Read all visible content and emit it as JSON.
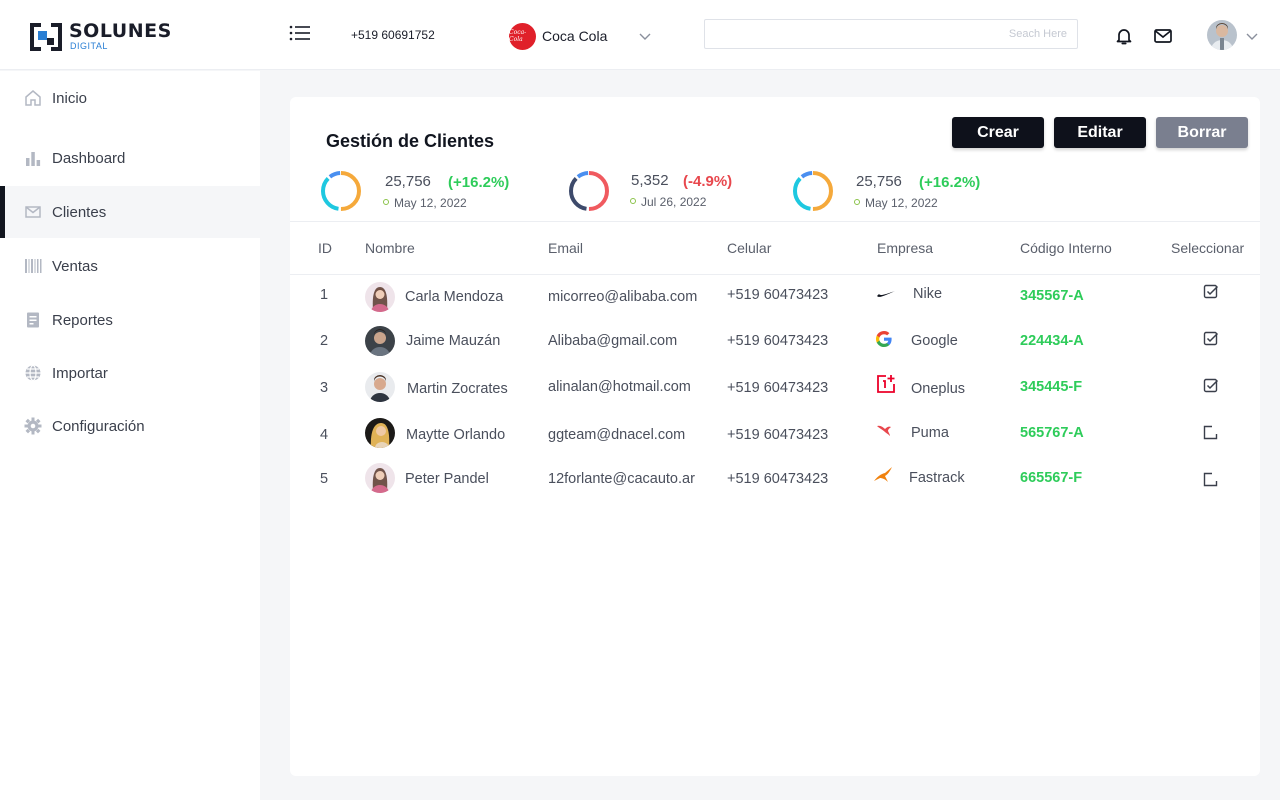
{
  "header": {
    "logo_text": "SOLUNES",
    "logo_sub": "DIGITAL",
    "phone": "+519 60691752",
    "brand": {
      "logo_text": "Coca-Cola",
      "name": "Coca Cola"
    },
    "search_placeholder": "Seach Here"
  },
  "sidebar": {
    "items": [
      {
        "label": "Inicio",
        "icon": "home-icon",
        "active": false
      },
      {
        "label": "Dashboard",
        "icon": "bar-chart-icon",
        "active": false
      },
      {
        "label": "Clientes",
        "icon": "mail-icon",
        "active": true
      },
      {
        "label": "Ventas",
        "icon": "barcode-icon",
        "active": false
      },
      {
        "label": "Reportes",
        "icon": "report-icon",
        "active": false
      },
      {
        "label": "Importar",
        "icon": "globe-icon",
        "active": false
      },
      {
        "label": "Configuración",
        "icon": "gear-icon",
        "active": false
      }
    ]
  },
  "card": {
    "title": "Gestión de Clientes",
    "buttons": {
      "create": "Crear",
      "edit": "Editar",
      "delete": "Borrar"
    },
    "stats": [
      {
        "value": "25,756",
        "change": "(+16.2%)",
        "date": "May 12, 2022",
        "trend": "up"
      },
      {
        "value": "5,352",
        "change": "(-4.9%)",
        "date": "Jul 26, 2022",
        "trend": "down"
      },
      {
        "value": "25,756",
        "change": "(+16.2%)",
        "date": "May 12, 2022",
        "trend": "up"
      }
    ],
    "table": {
      "headers": [
        "ID",
        "Nombre",
        "Email",
        "Celular",
        "Empresa",
        "Código Interno",
        "Seleccionar"
      ],
      "rows": [
        {
          "id": "1",
          "name": "Carla Mendoza",
          "email": "micorreo@alibaba.com",
          "phone": "+519 60473423",
          "company": "Nike",
          "company_icon": "nike-logo-icon",
          "code": "345567-A",
          "selected": true
        },
        {
          "id": "2",
          "name": "Jaime Mauzán",
          "email": "Alibaba@gmail.com",
          "phone": "+519 60473423",
          "company": "Google",
          "company_icon": "google-logo-icon",
          "code": "224434-A",
          "selected": true
        },
        {
          "id": "3",
          "name": "Martin Zocrates",
          "email": "alinalan@hotmail.com",
          "phone": "+519 60473423",
          "company": "Oneplus",
          "company_icon": "oneplus-logo-icon",
          "code": "345445-F",
          "selected": true
        },
        {
          "id": "4",
          "name": "Maytte Orlando",
          "email": "ggteam@dnacel.com",
          "phone": "+519 60473423",
          "company": "Puma",
          "company_icon": "puma-logo-icon",
          "code": "565767-A",
          "selected": false
        },
        {
          "id": "5",
          "name": "Peter Pandel",
          "email": "12forlante@cacauto.ar",
          "phone": "+519 60473423",
          "company": "Fastrack",
          "company_icon": "fastrack-logo-icon",
          "code": "665567-F",
          "selected": false
        }
      ]
    }
  },
  "colors": {
    "accent_dark": "#0e111b",
    "positive": "#2ecc5a",
    "negative": "#e8474d",
    "ring_blue": "#4a8ff0",
    "ring_cyan": "#1ec8e0",
    "ring_orange": "#f5a93b",
    "ring_red": "#f05a5f",
    "ring_navy": "#3d4a6b"
  }
}
